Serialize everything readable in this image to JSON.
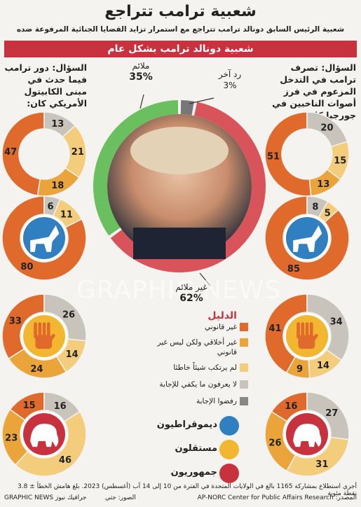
{
  "title": "شعبية ترامب تتراجع",
  "subtitle": "شعبية الرئيس السابق دونالد ترامب تتراجع مع استمرار تزايد القضايا الجنائية المرفوعة ضده",
  "banner": "شعبية دونالد ترامب بشكل عام",
  "question_right": "السؤال: تصرف ترامب في التدخل المزعوم في فرز أصوات الناخبين في جورجيا كان:",
  "question_left": "السؤال: دور ترامب فيما حدث في مبنى الكابيتول الأمريكي كان:",
  "overall": {
    "appropriate_label": "ملائم",
    "appropriate_value": "35%",
    "other_label": "رد آخر",
    "other_value": "3%",
    "inappropriate_label": "غير ملائم",
    "inappropriate_value": "62%"
  },
  "legend": {
    "title": "الدليل",
    "items": [
      {
        "label": "غير قانوني",
        "color": "#e06a2c"
      },
      {
        "label": "غير أخلاقي ولكن ليس غير قانوني",
        "color": "#eaa43a"
      },
      {
        "label": "لم يرتكب شيئاً خاطئا",
        "color": "#f4cd7c"
      },
      {
        "label": "لا يعرفون ما يكفي للإجابة",
        "color": "#c8c4bc"
      },
      {
        "label": "رفضوا الإجابة",
        "color": "#888880"
      }
    ],
    "parties": [
      {
        "label": "ديموقراطيون",
        "color": "#2f7fc1",
        "icon": "donkey-icon"
      },
      {
        "label": "مستقلون",
        "color": "#f2b630",
        "icon": "hand-icon"
      },
      {
        "label": "جمهوريون",
        "color": "#c8323f",
        "icon": "elephant-icon"
      }
    ]
  },
  "footer_line1": "أجري استطلاع بمشاركة 1165 بالغ في الولايات المتحدة في الفترة من 10 إلى 14 آب (أغسطس) 2023. بلغ هامش الخطأ ± 3.8 نقطة مئوية",
  "footer_source": "المصدر: AP-NORC Center for Public Affairs Research",
  "footer_photo": "الصور: جتي",
  "footer_credit": "GRAPHIC NEWS جرافيك نيوز",
  "watermark": "GRAPHIC NEWS",
  "chart_data": [
    {
      "type": "pie",
      "title": "شعبية دونالد ترامب بشكل عام",
      "categories": [
        "ملائم",
        "رد آخر",
        "غير ملائم"
      ],
      "values": [
        35,
        3,
        62
      ],
      "colors": [
        "#6abf5e",
        "#777777",
        "#d9545a"
      ]
    },
    {
      "type": "pie",
      "title": "السؤال: تصرف ترامب في التدخل المزعوم في فرز أصوات الناخبين في جورجيا كان:",
      "categories": [
        "غير قانوني",
        "غير أخلاقي ولكن ليس غير قانوني",
        "لم يرتكب شيئاً خاطئا",
        "لا يعرفون ما يكفي للإجابة",
        "رفضوا الإجابة"
      ],
      "series": [
        {
          "name": "الإجمالي",
          "values": [
            51,
            13,
            15,
            20,
            0
          ]
        },
        {
          "name": "ديموقراطيون",
          "values": [
            85,
            0,
            5,
            8,
            0
          ]
        },
        {
          "name": "مستقلون",
          "values": [
            41,
            9,
            14,
            34,
            0
          ]
        },
        {
          "name": "جمهوريون",
          "values": [
            16,
            26,
            31,
            27,
            0
          ]
        }
      ]
    },
    {
      "type": "pie",
      "title": "السؤال: دور ترامب فيما حدث في مبنى الكابيتول الأمريكي كان:",
      "categories": [
        "غير قانوني",
        "غير أخلاقي ولكن ليس غير قانوني",
        "لم يرتكب شيئاً خاطئا",
        "لا يعرفون ما يكفي للإجابة",
        "رفضوا الإجابة"
      ],
      "series": [
        {
          "name": "الإجمالي",
          "values": [
            47,
            18,
            21,
            13,
            0
          ]
        },
        {
          "name": "ديموقراطيون",
          "values": [
            80,
            0,
            11,
            6,
            0
          ]
        },
        {
          "name": "مستقلون",
          "values": [
            33,
            24,
            14,
            26,
            0
          ]
        },
        {
          "name": "جمهوريون",
          "values": [
            15,
            23,
            46,
            16,
            0
          ]
        }
      ]
    }
  ]
}
